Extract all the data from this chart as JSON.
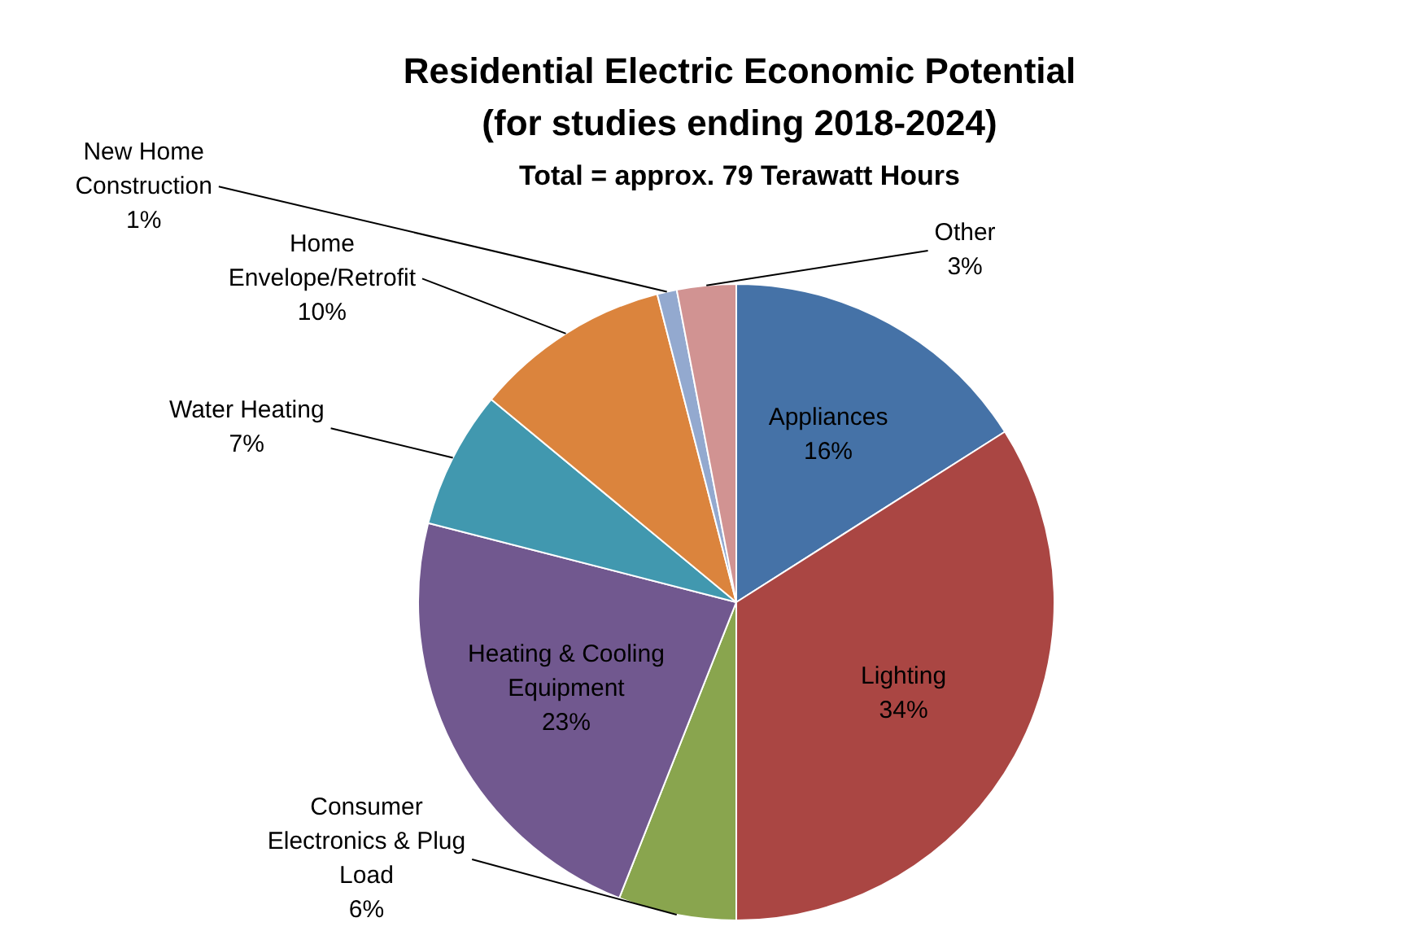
{
  "chart_data": {
    "type": "pie",
    "title": "Residential Electric Economic Potential (for studies ending 2018-2024)",
    "subtitle": "Total = approx. 79 Terawatt Hours",
    "categories": [
      "Appliances",
      "Lighting",
      "Consumer Electronics & Plug Load",
      "Heating & Cooling Equipment",
      "Water Heating",
      "Home Envelope/Retrofit",
      "New Home Construction",
      "Other"
    ],
    "values": [
      16,
      34,
      6,
      23,
      7,
      10,
      1,
      3
    ],
    "value_labels": [
      "16%",
      "34%",
      "6%",
      "23%",
      "7%",
      "10%",
      "1%",
      "3%"
    ],
    "colors": [
      "#4572a7",
      "#aa4643",
      "#89a54e",
      "#71588f",
      "#4198af",
      "#db843d",
      "#93a9cf",
      "#d19392"
    ],
    "legend": false
  }
}
